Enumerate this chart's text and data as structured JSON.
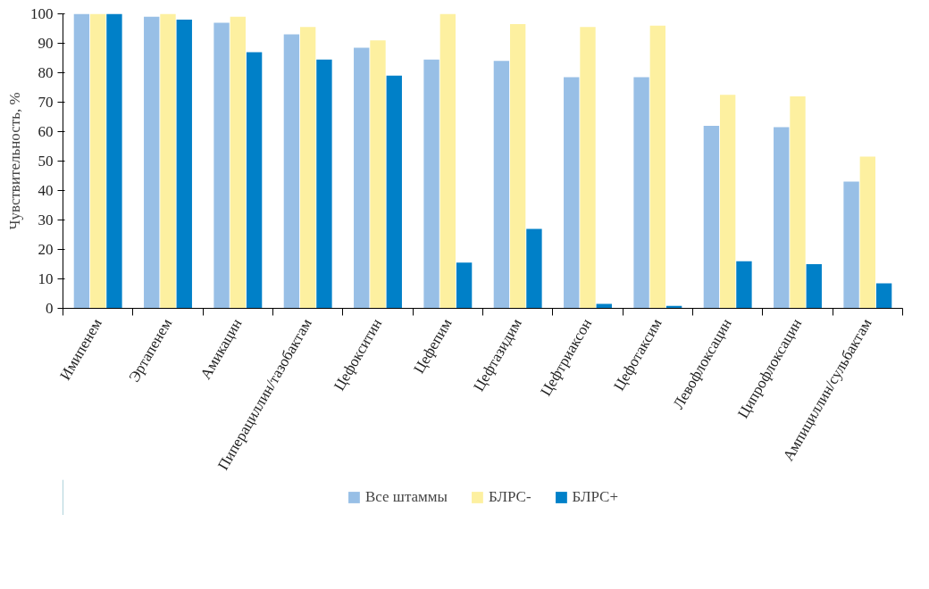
{
  "chart_data": {
    "type": "bar",
    "ylabel": "Чувствительность, %",
    "categories": [
      "Имипенем",
      "Эртапенем",
      "Амикацин",
      "Пиперациллин/тазобактам",
      "Цефокситин",
      "Цефепим",
      "Цефтазидим",
      "Цефтриаксон",
      "Цефотаксим",
      "Левофлоксацин",
      "Ципрофлоксацин",
      "Ампициллин/сульбактам"
    ],
    "series": [
      {
        "name": "Все штаммы",
        "color": "#98bfe6",
        "values": [
          100,
          99,
          97,
          93,
          88.5,
          84.5,
          84,
          78.5,
          78.5,
          62,
          61.5,
          43
        ]
      },
      {
        "name": "БЛРС-",
        "color": "#fdf0a0",
        "values": [
          100,
          100,
          99,
          95.5,
          91,
          100,
          96.5,
          95.5,
          96,
          72.5,
          72,
          51.5
        ]
      },
      {
        "name": "БЛРС+",
        "color": "#0080c8",
        "values": [
          100,
          98,
          87,
          84.5,
          79,
          15.5,
          27,
          1.5,
          0.8,
          16,
          15,
          8.5
        ]
      }
    ],
    "ylim": [
      0,
      100
    ],
    "yticks": [
      0,
      10,
      20,
      30,
      40,
      50,
      60,
      70,
      80,
      90,
      100
    ],
    "grid": false,
    "legend": "bottom"
  }
}
